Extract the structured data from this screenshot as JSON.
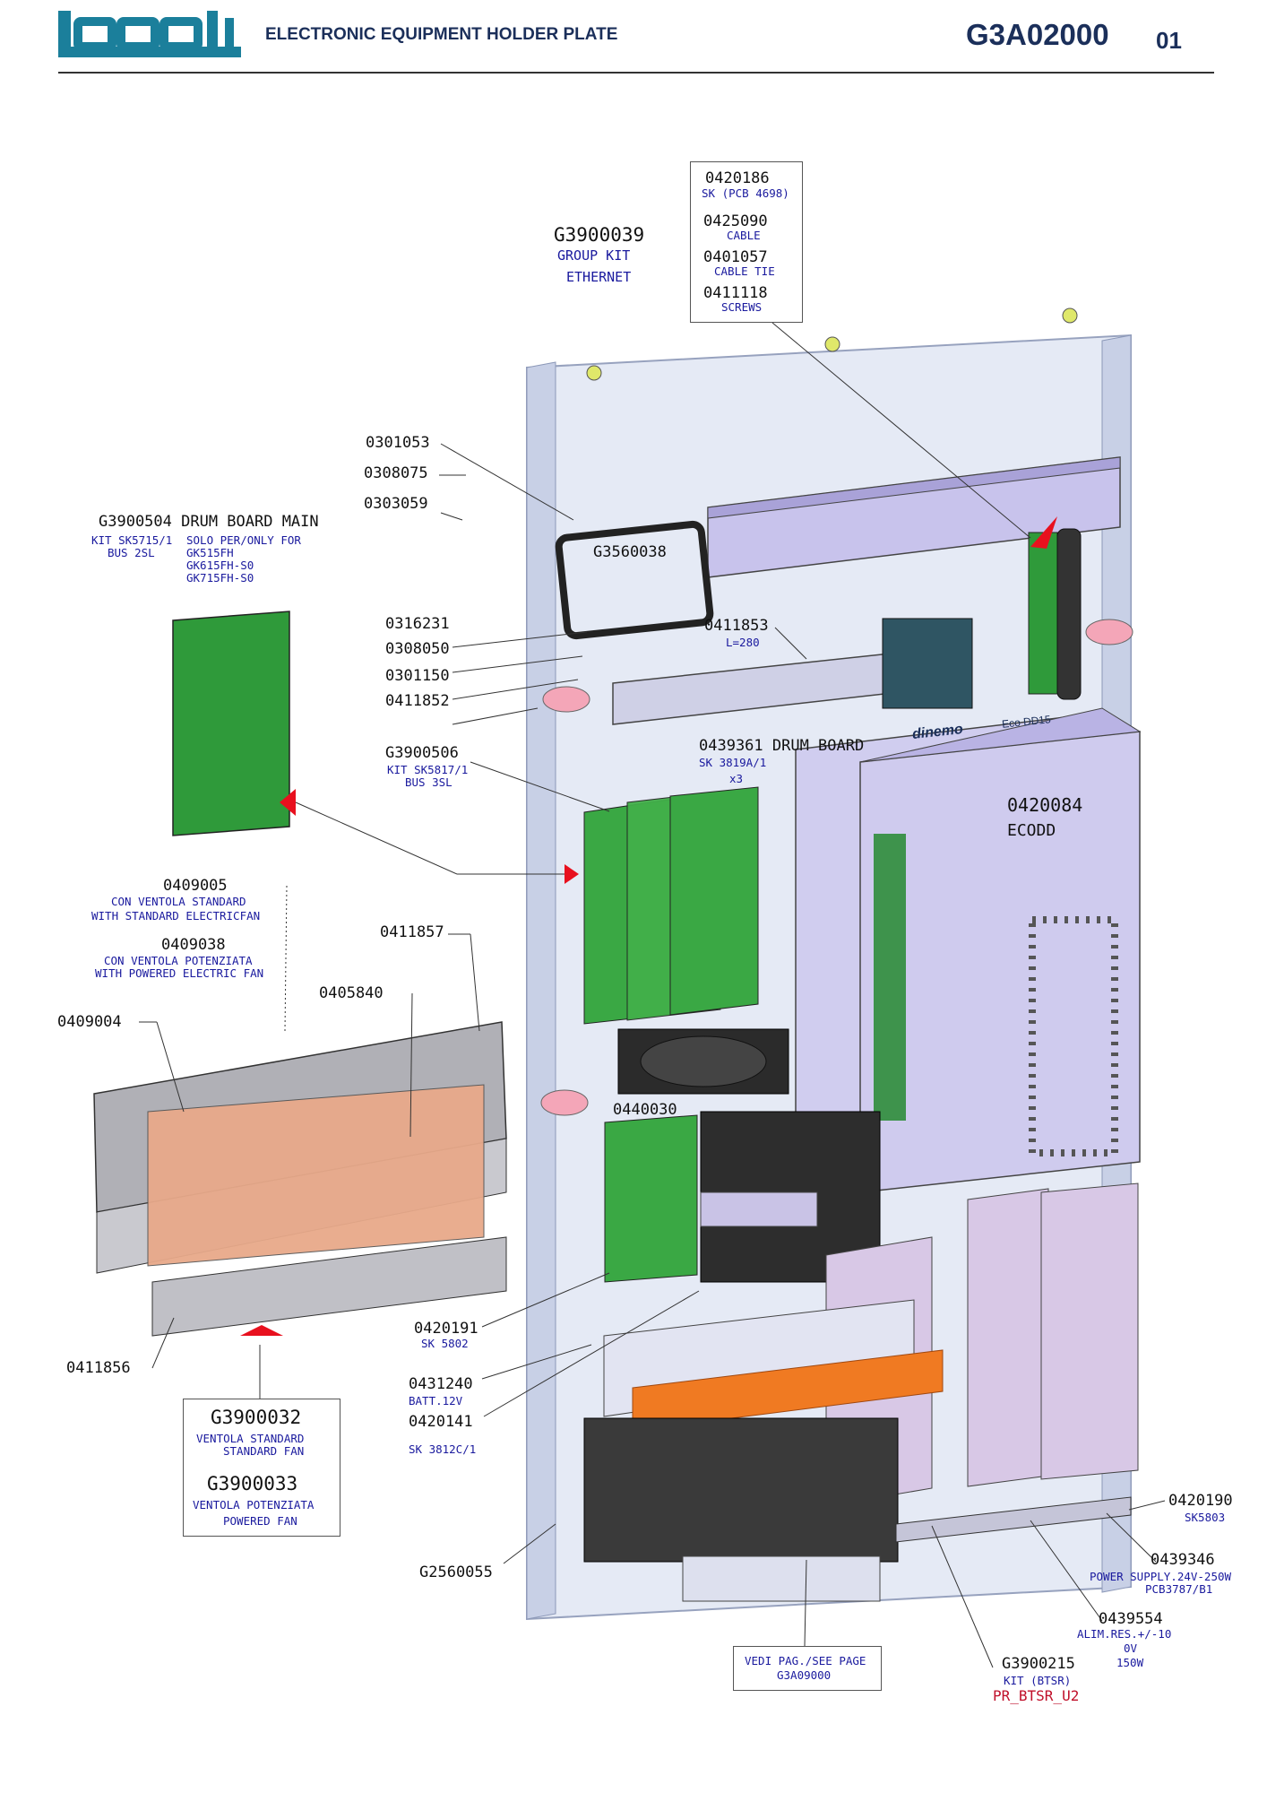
{
  "header": {
    "logo_text": "lonati",
    "title": "ELECTRONIC EQUIPMENT HOLDER PLATE",
    "code": "G3A02000",
    "page": "01"
  },
  "ethernet_kit": {
    "code": "G3900039",
    "line1": "GROUP KIT",
    "line2": "ETHERNET",
    "items": [
      {
        "code": "0420186",
        "desc": "SK (PCB 4698)"
      },
      {
        "code": "0425090",
        "desc": "CABLE"
      },
      {
        "code": "0401057",
        "desc": "CABLE TIE"
      },
      {
        "code": "0411118",
        "desc": "SCREWS"
      }
    ]
  },
  "drum_board_main": {
    "title": "G3900504 DRUM BOARD MAIN",
    "kit": "KIT SK5715/1",
    "bus": "BUS 2SL",
    "solo": "SOLO PER/ONLY FOR",
    "models": [
      "GK515FH",
      "GK615FH-S0",
      "GK715FH-S0"
    ]
  },
  "parts": {
    "p0301053": "0301053",
    "p0308075": "0308075",
    "p0303059": "0303059",
    "g3560038": "G3560038",
    "p0316231": "0316231",
    "p0308050": "0308050",
    "p0301150": "0301150",
    "p0411852": "0411852",
    "p0411853": "0411853",
    "p0411853_sub": "L=280",
    "g3900506": "G3900506",
    "g3900506_kit": "KIT SK5817/1",
    "g3900506_bus": "BUS 3SL",
    "p0439361": "0439361 DRUM BOARD",
    "p0439361_sk": "SK 3819A/1",
    "p0439361_qty": "x3",
    "p0420084": "0420084",
    "p0420084_sub": "ECODD",
    "p0409005": "0409005",
    "p0409005_it": "CON VENTOLA STANDARD",
    "p0409005_en": "WITH STANDARD ELECTRICFAN",
    "p0409038": "0409038",
    "p0409038_it": "CON VENTOLA POTENZIATA",
    "p0409038_en": "WITH POWERED ELECTRIC FAN",
    "p0411857": "0411857",
    "p0405840": "0405840",
    "p0409004": "0409004",
    "p0440030": "0440030",
    "p0420191": "0420191",
    "p0420191_sk": "SK 5802",
    "p0431240": "0431240",
    "p0431240_sub": "BATT.12V",
    "p0420141": "0420141",
    "p0420141_sk": "SK 3812C/1",
    "p0411856": "0411856",
    "g2560055": "G2560055",
    "p0420190": "0420190",
    "p0420190_sk": "SK5803",
    "p0439346": "0439346",
    "p0439346_l1": "POWER SUPPLY.24V-250W",
    "p0439346_l2": "PCB3787/B1",
    "p0439554": "0439554",
    "p0439554_l1": "ALIM.RES.+/-10",
    "p0439554_l2": "0V",
    "p0439554_l3": "150W",
    "g3900215": "G3900215",
    "g3900215_kit": "KIT (BTSR)",
    "g3900215_red": "PR_BTSR_U2"
  },
  "fan_box": {
    "std_code": "G3900032",
    "std_it": "VENTOLA STANDARD",
    "std_en": "STANDARD FAN",
    "pow_code": "G3900033",
    "pow_it": "VENTOLA POTENZIATA",
    "pow_en": "POWERED FAN"
  },
  "see_page": {
    "line1": "VEDI PAG./SEE PAGE",
    "line2": "G3A09000"
  },
  "device_labels": {
    "brand": "dinemo",
    "model": "Eco DD15"
  },
  "colors": {
    "header_blue": "#1b2f5a",
    "sub_blue": "#1a1a9e",
    "plate": "#dde3f2",
    "pcb_green": "#2f9a3a",
    "relay_salmon": "#e8a98a",
    "cover_lilac": "#c9c3e6",
    "pointer_red": "#e8101e",
    "strip_orange": "#f07a22"
  }
}
